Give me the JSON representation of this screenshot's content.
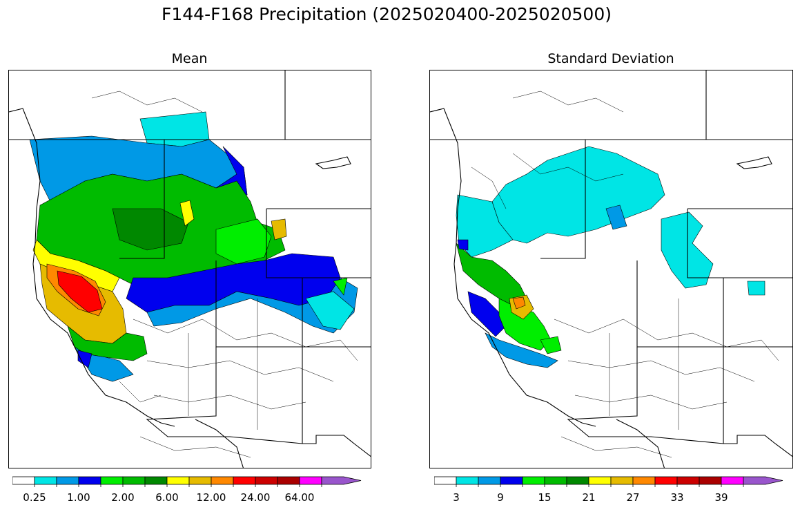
{
  "title": "F144-F168 Precipitation (2025020400-2025020500)",
  "panels": [
    {
      "title": "Mean",
      "colorbar": {
        "colors": [
          "#ffffff",
          "#00e5e5",
          "#0099e6",
          "#0000ee",
          "#00ee00",
          "#00bb00",
          "#008800",
          "#ffff00",
          "#e6bb00",
          "#ff8800",
          "#ff0000",
          "#cc0000",
          "#aa0000",
          "#ff00ff",
          "#9955cc"
        ],
        "tick_labels": [
          "0.25",
          "1.00",
          "2.00",
          "6.00",
          "12.00",
          "24.00",
          "64.00"
        ],
        "extend": "max"
      }
    },
    {
      "title": "Standard Deviation",
      "colorbar": {
        "colors": [
          "#ffffff",
          "#00e5e5",
          "#0099e6",
          "#0000ee",
          "#00ee00",
          "#00bb00",
          "#008800",
          "#ffff00",
          "#e6bb00",
          "#ff8800",
          "#ff0000",
          "#cc0000",
          "#aa0000",
          "#ff00ff",
          "#9955cc"
        ],
        "tick_labels": [
          "3",
          "9",
          "15",
          "21",
          "27",
          "33",
          "39"
        ],
        "extend": "max"
      }
    }
  ]
}
